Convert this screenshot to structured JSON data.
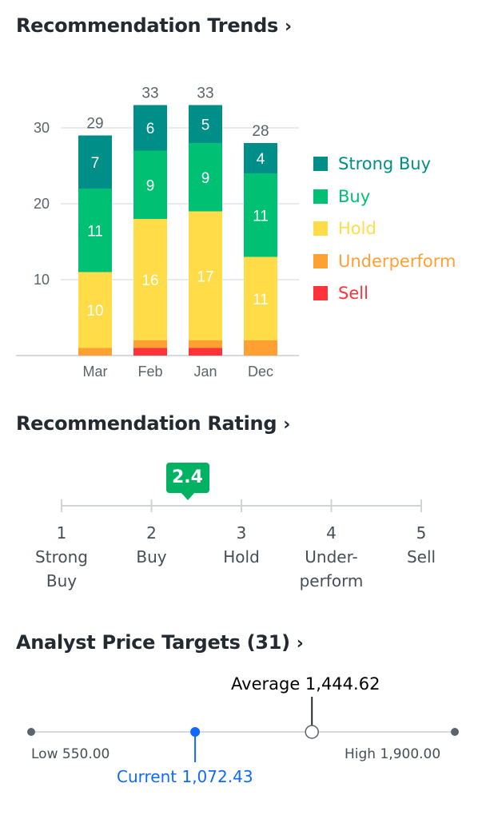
{
  "sections": {
    "trends_title": "Recommendation Trends",
    "rating_title": "Recommendation Rating",
    "targets_title": "Analyst Price Targets (31)"
  },
  "chart_data": {
    "type": "bar",
    "stacked": true,
    "categories": [
      "Mar",
      "Feb",
      "Jan",
      "Dec"
    ],
    "ylim": [
      0,
      30
    ],
    "yticks": [
      10,
      20,
      30
    ],
    "grid": true,
    "legend_position": "right",
    "totals": [
      29,
      33,
      33,
      28
    ],
    "series": [
      {
        "name": "Sell",
        "color": "#ff333a",
        "values": [
          0,
          1,
          1,
          0
        ]
      },
      {
        "name": "Underperform",
        "color": "#ffa033",
        "values": [
          1,
          1,
          1,
          2
        ]
      },
      {
        "name": "Hold",
        "color": "#ffdc48",
        "values": [
          10,
          16,
          17,
          11
        ]
      },
      {
        "name": "Buy",
        "color": "#00c073",
        "values": [
          11,
          9,
          9,
          11
        ]
      },
      {
        "name": "Strong Buy",
        "color": "#008f88",
        "values": [
          7,
          6,
          5,
          4
        ]
      }
    ]
  },
  "legend": [
    {
      "name": "Strong Buy",
      "color": "#008f88"
    },
    {
      "name": "Buy",
      "color": "#00c073"
    },
    {
      "name": "Hold",
      "color": "#ffdc48"
    },
    {
      "name": "Underperform",
      "color": "#ffa033"
    },
    {
      "name": "Sell",
      "color": "#ff333a"
    }
  ],
  "rating": {
    "value": "2.4",
    "value_num": 2.4,
    "scale": [
      {
        "num": "1",
        "line1": "Strong",
        "line2": "Buy"
      },
      {
        "num": "2",
        "line1": "Buy",
        "line2": ""
      },
      {
        "num": "3",
        "line1": "Hold",
        "line2": ""
      },
      {
        "num": "4",
        "line1": "Under-",
        "line2": "perform"
      },
      {
        "num": "5",
        "line1": "Sell",
        "line2": ""
      }
    ]
  },
  "price_targets": {
    "low": 550.0,
    "high": 1900.0,
    "current": 1072.43,
    "average": 1444.62,
    "low_label": "Low 550.00",
    "high_label": "High 1,900.00",
    "current_label": "Current 1,072.43",
    "average_label": "Average 1,444.62",
    "current_color": "#0f69ff"
  }
}
